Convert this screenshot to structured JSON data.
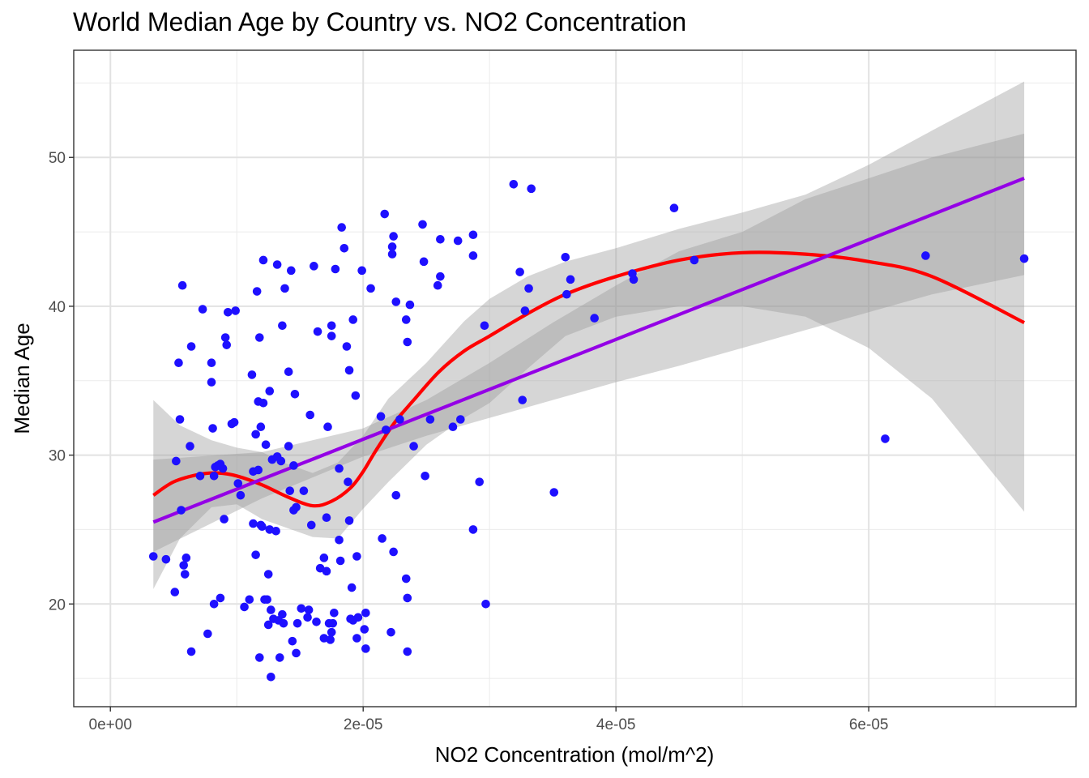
{
  "chart_data": {
    "type": "scatter",
    "title": "World Median Age by Country vs. NO2 Concentration",
    "xlabel": "NO2 Concentration (mol/m^2)",
    "ylabel": "Median Age",
    "xlim": [
      -2.9e-06,
      7.64e-05
    ],
    "ylim": [
      13.1,
      57.2
    ],
    "x_ticks": [
      0,
      2e-05,
      4e-05,
      6e-05
    ],
    "x_tick_labels": [
      "0e+00",
      "2e-05",
      "4e-05",
      "6e-05"
    ],
    "y_ticks": [
      20,
      30,
      40,
      50
    ],
    "y_tick_labels": [
      "20",
      "30",
      "40",
      "50"
    ],
    "grid": true,
    "theme": "white background with light grey gridlines and black panel border",
    "colors": {
      "points": "#1e10ff",
      "linear_fit": "#9400e6",
      "loess_fit": "#ff0000",
      "confidence_band": "#999999"
    },
    "points": [
      [
        3.4e-06,
        23.2
      ],
      [
        4.4e-06,
        23.0
      ],
      [
        5.1e-06,
        20.8
      ],
      [
        5.2e-06,
        29.6
      ],
      [
        5.4e-06,
        36.2
      ],
      [
        5.5e-06,
        32.4
      ],
      [
        5.6e-06,
        26.3
      ],
      [
        5.7e-06,
        41.4
      ],
      [
        5.8e-06,
        22.6
      ],
      [
        5.9e-06,
        22.0
      ],
      [
        6e-06,
        23.1
      ],
      [
        6.3e-06,
        30.6
      ],
      [
        6.4e-06,
        37.3
      ],
      [
        6.4e-06,
        16.8
      ],
      [
        7.1e-06,
        28.6
      ],
      [
        7.3e-06,
        39.8
      ],
      [
        7.7e-06,
        18.0
      ],
      [
        8e-06,
        36.2
      ],
      [
        8e-06,
        34.9
      ],
      [
        8.1e-06,
        31.8
      ],
      [
        8.2e-06,
        20.0
      ],
      [
        8.2e-06,
        28.6
      ],
      [
        8.3e-06,
        29.2
      ],
      [
        8.5e-06,
        29.3
      ],
      [
        8.7e-06,
        29.4
      ],
      [
        8.7e-06,
        20.4
      ],
      [
        8.9e-06,
        29.1
      ],
      [
        9e-06,
        25.7
      ],
      [
        9.1e-06,
        37.9
      ],
      [
        9.2e-06,
        37.4
      ],
      [
        9.3e-06,
        39.6
      ],
      [
        9.6e-06,
        32.1
      ],
      [
        9.8e-06,
        32.2
      ],
      [
        9.9e-06,
        39.7
      ],
      [
        1.01e-05,
        28.1
      ],
      [
        1.03e-05,
        27.3
      ],
      [
        1.06e-05,
        19.8
      ],
      [
        1.1e-05,
        20.3
      ],
      [
        1.12e-05,
        35.4
      ],
      [
        1.13e-05,
        25.4
      ],
      [
        1.13e-05,
        28.9
      ],
      [
        1.15e-05,
        23.3
      ],
      [
        1.15e-05,
        31.4
      ],
      [
        1.16e-05,
        41.0
      ],
      [
        1.17e-05,
        33.6
      ],
      [
        1.17e-05,
        29.0
      ],
      [
        1.18e-05,
        37.9
      ],
      [
        1.18e-05,
        16.4
      ],
      [
        1.19e-05,
        31.9
      ],
      [
        1.19e-05,
        25.3
      ],
      [
        1.2e-05,
        25.2
      ],
      [
        1.21e-05,
        33.5
      ],
      [
        1.21e-05,
        43.1
      ],
      [
        1.22e-05,
        20.3
      ],
      [
        1.23e-05,
        30.7
      ],
      [
        1.24e-05,
        20.3
      ],
      [
        1.25e-05,
        22.0
      ],
      [
        1.25e-05,
        18.6
      ],
      [
        1.26e-05,
        34.3
      ],
      [
        1.26e-05,
        25.0
      ],
      [
        1.27e-05,
        19.6
      ],
      [
        1.27e-05,
        15.1
      ],
      [
        1.28e-05,
        29.7
      ],
      [
        1.29e-05,
        19.0
      ],
      [
        1.31e-05,
        24.9
      ],
      [
        1.32e-05,
        42.8
      ],
      [
        1.32e-05,
        29.9
      ],
      [
        1.33e-05,
        18.9
      ],
      [
        1.34e-05,
        16.4
      ],
      [
        1.35e-05,
        29.6
      ],
      [
        1.36e-05,
        38.7
      ],
      [
        1.36e-05,
        19.3
      ],
      [
        1.37e-05,
        18.7
      ],
      [
        1.38e-05,
        41.2
      ],
      [
        1.41e-05,
        30.6
      ],
      [
        1.41e-05,
        35.6
      ],
      [
        1.42e-05,
        27.6
      ],
      [
        1.43e-05,
        42.4
      ],
      [
        1.44e-05,
        17.5
      ],
      [
        1.45e-05,
        26.3
      ],
      [
        1.45e-05,
        29.3
      ],
      [
        1.46e-05,
        34.1
      ],
      [
        1.47e-05,
        16.7
      ],
      [
        1.47e-05,
        26.5
      ],
      [
        1.48e-05,
        18.7
      ],
      [
        1.51e-05,
        19.7
      ],
      [
        1.53e-05,
        27.6
      ],
      [
        1.56e-05,
        19.1
      ],
      [
        1.57e-05,
        19.6
      ],
      [
        1.58e-05,
        32.7
      ],
      [
        1.59e-05,
        25.3
      ],
      [
        1.61e-05,
        42.7
      ],
      [
        1.63e-05,
        18.8
      ],
      [
        1.64e-05,
        38.3
      ],
      [
        1.66e-05,
        22.4
      ],
      [
        1.69e-05,
        17.7
      ],
      [
        1.69e-05,
        23.1
      ],
      [
        1.71e-05,
        25.8
      ],
      [
        1.71e-05,
        22.2
      ],
      [
        1.72e-05,
        31.9
      ],
      [
        1.73e-05,
        18.7
      ],
      [
        1.74e-05,
        17.6
      ],
      [
        1.75e-05,
        38.0
      ],
      [
        1.75e-05,
        38.7
      ],
      [
        1.75e-05,
        18.1
      ],
      [
        1.76e-05,
        18.7
      ],
      [
        1.77e-05,
        19.4
      ],
      [
        1.78e-05,
        42.5
      ],
      [
        1.81e-05,
        29.1
      ],
      [
        1.81e-05,
        24.3
      ],
      [
        1.82e-05,
        22.9
      ],
      [
        1.83e-05,
        45.3
      ],
      [
        1.85e-05,
        43.9
      ],
      [
        1.87e-05,
        37.3
      ],
      [
        1.88e-05,
        28.2
      ],
      [
        1.89e-05,
        35.7
      ],
      [
        1.89e-05,
        25.6
      ],
      [
        1.9e-05,
        19.0
      ],
      [
        1.91e-05,
        21.1
      ],
      [
        1.92e-05,
        39.1
      ],
      [
        1.92e-05,
        18.9
      ],
      [
        1.94e-05,
        34.0
      ],
      [
        1.95e-05,
        23.2
      ],
      [
        1.95e-05,
        17.7
      ],
      [
        1.96e-05,
        19.1
      ],
      [
        1.99e-05,
        42.4
      ],
      [
        2.01e-05,
        18.3
      ],
      [
        2.02e-05,
        19.4
      ],
      [
        2.02e-05,
        17.0
      ],
      [
        2.06e-05,
        41.2
      ],
      [
        2.14e-05,
        32.6
      ],
      [
        2.15e-05,
        24.4
      ],
      [
        2.17e-05,
        46.2
      ],
      [
        2.18e-05,
        31.7
      ],
      [
        2.22e-05,
        18.1
      ],
      [
        2.23e-05,
        43.5
      ],
      [
        2.23e-05,
        44.0
      ],
      [
        2.24e-05,
        44.7
      ],
      [
        2.24e-05,
        23.5
      ],
      [
        2.26e-05,
        40.3
      ],
      [
        2.26e-05,
        27.3
      ],
      [
        2.29e-05,
        32.4
      ],
      [
        2.34e-05,
        21.7
      ],
      [
        2.34e-05,
        39.1
      ],
      [
        2.35e-05,
        37.6
      ],
      [
        2.35e-05,
        20.4
      ],
      [
        2.35e-05,
        16.8
      ],
      [
        2.37e-05,
        40.1
      ],
      [
        2.4e-05,
        30.6
      ],
      [
        2.47e-05,
        45.5
      ],
      [
        2.48e-05,
        43.0
      ],
      [
        2.49e-05,
        28.6
      ],
      [
        2.53e-05,
        32.4
      ],
      [
        2.59e-05,
        41.4
      ],
      [
        2.61e-05,
        44.5
      ],
      [
        2.61e-05,
        42.0
      ],
      [
        2.71e-05,
        31.9
      ],
      [
        2.75e-05,
        44.4
      ],
      [
        2.77e-05,
        32.4
      ],
      [
        2.87e-05,
        44.8
      ],
      [
        2.87e-05,
        43.4
      ],
      [
        2.87e-05,
        25.0
      ],
      [
        2.92e-05,
        28.2
      ],
      [
        2.96e-05,
        38.7
      ],
      [
        2.97e-05,
        20.0
      ],
      [
        3.19e-05,
        48.2
      ],
      [
        3.24e-05,
        42.3
      ],
      [
        3.26e-05,
        33.7
      ],
      [
        3.28e-05,
        39.7
      ],
      [
        3.31e-05,
        41.2
      ],
      [
        3.33e-05,
        47.9
      ],
      [
        3.51e-05,
        27.5
      ],
      [
        3.6e-05,
        43.3
      ],
      [
        3.61e-05,
        40.8
      ],
      [
        3.64e-05,
        41.8
      ],
      [
        3.83e-05,
        39.2
      ],
      [
        4.13e-05,
        42.2
      ],
      [
        4.14e-05,
        41.8
      ],
      [
        4.46e-05,
        46.6
      ],
      [
        4.62e-05,
        43.1
      ],
      [
        6.13e-05,
        31.1
      ],
      [
        6.45e-05,
        43.4
      ],
      [
        7.23e-05,
        43.2
      ]
    ],
    "linear_fit": {
      "name": "lm",
      "line": [
        [
          3.4e-06,
          25.5
        ],
        [
          7.23e-05,
          48.6
        ]
      ],
      "band_upper": [
        [
          3.4e-06,
          29.7
        ],
        [
          1.2e-05,
          30.2
        ],
        [
          2e-05,
          31.8
        ],
        [
          2.5e-05,
          33.7
        ],
        [
          3e-05,
          36.2
        ],
        [
          3.5e-05,
          38.9
        ],
        [
          4e-05,
          41.4
        ],
        [
          4.5e-05,
          43.7
        ],
        [
          5e-05,
          45.0
        ],
        [
          5.5e-05,
          47.2
        ],
        [
          6e-05,
          48.6
        ],
        [
          6.5e-05,
          50.0
        ],
        [
          7.23e-05,
          51.6
        ]
      ],
      "band_lower": [
        [
          3.4e-06,
          23.5
        ],
        [
          1.2e-05,
          27.1
        ],
        [
          2e-05,
          29.9
        ],
        [
          2.5e-05,
          31.3
        ],
        [
          3e-05,
          32.5
        ],
        [
          3.5e-05,
          33.7
        ],
        [
          4e-05,
          34.9
        ],
        [
          4.5e-05,
          36.0
        ],
        [
          5e-05,
          37.2
        ],
        [
          5.5e-05,
          38.4
        ],
        [
          6e-05,
          39.6
        ],
        [
          6.5e-05,
          40.8
        ],
        [
          7.23e-05,
          42.1
        ]
      ]
    },
    "loess_fit": {
      "name": "loess",
      "line": [
        [
          3.4e-06,
          27.3
        ],
        [
          5e-06,
          28.2
        ],
        [
          7e-06,
          28.7
        ],
        [
          8.5e-06,
          28.8
        ],
        [
          1e-05,
          28.6
        ],
        [
          1.2e-05,
          28.0
        ],
        [
          1.4e-05,
          27.2
        ],
        [
          1.6e-05,
          26.6
        ],
        [
          1.75e-05,
          26.9
        ],
        [
          1.9e-05,
          27.8
        ],
        [
          2e-05,
          28.9
        ],
        [
          2.1e-05,
          30.3
        ],
        [
          2.25e-05,
          32.2
        ],
        [
          2.4e-05,
          33.7
        ],
        [
          2.6e-05,
          35.6
        ],
        [
          2.8e-05,
          37.0
        ],
        [
          3e-05,
          38.0
        ],
        [
          3.3e-05,
          39.5
        ],
        [
          3.6e-05,
          40.8
        ],
        [
          4e-05,
          42.0
        ],
        [
          4.5e-05,
          43.1
        ],
        [
          5e-05,
          43.6
        ],
        [
          5.5e-05,
          43.5
        ],
        [
          6e-05,
          43.0
        ],
        [
          6.5e-05,
          42.0
        ],
        [
          7.23e-05,
          38.9
        ]
      ],
      "band_upper": [
        [
          3.4e-06,
          33.7
        ],
        [
          5.5e-06,
          32.0
        ],
        [
          8e-06,
          31.0
        ],
        [
          1e-05,
          30.5
        ],
        [
          1.2e-05,
          30.2
        ],
        [
          1.4e-05,
          29.4
        ],
        [
          1.6e-05,
          28.8
        ],
        [
          1.8e-05,
          29.5
        ],
        [
          2e-05,
          31.3
        ],
        [
          2.2e-05,
          33.8
        ],
        [
          2.5e-05,
          36.2
        ],
        [
          2.8e-05,
          39.0
        ],
        [
          3e-05,
          40.5
        ],
        [
          3.3e-05,
          42.0
        ],
        [
          3.6e-05,
          43.0
        ],
        [
          4e-05,
          43.9
        ],
        [
          4.5e-05,
          45.2
        ],
        [
          5e-05,
          46.3
        ],
        [
          5.5e-05,
          47.5
        ],
        [
          6e-05,
          49.5
        ],
        [
          6.5e-05,
          51.8
        ],
        [
          7.23e-05,
          55.1
        ]
      ],
      "band_lower": [
        [
          3.4e-06,
          21.0
        ],
        [
          5.5e-06,
          24.4
        ],
        [
          8e-06,
          26.5
        ],
        [
          1e-05,
          26.7
        ],
        [
          1.2e-05,
          25.7
        ],
        [
          1.4e-05,
          25.1
        ],
        [
          1.6e-05,
          24.5
        ],
        [
          1.8e-05,
          24.4
        ],
        [
          2e-05,
          26.4
        ],
        [
          2.2e-05,
          28.2
        ],
        [
          2.5e-05,
          30.7
        ],
        [
          2.8e-05,
          32.5
        ],
        [
          3e-05,
          33.5
        ],
        [
          3.3e-05,
          35.8
        ],
        [
          3.6e-05,
          38.0
        ],
        [
          4e-05,
          39.3
        ],
        [
          4.5e-05,
          40.0
        ],
        [
          5e-05,
          40.0
        ],
        [
          5.5e-05,
          39.3
        ],
        [
          6e-05,
          37.2
        ],
        [
          6.5e-05,
          33.8
        ],
        [
          7.23e-05,
          26.2
        ]
      ]
    }
  }
}
